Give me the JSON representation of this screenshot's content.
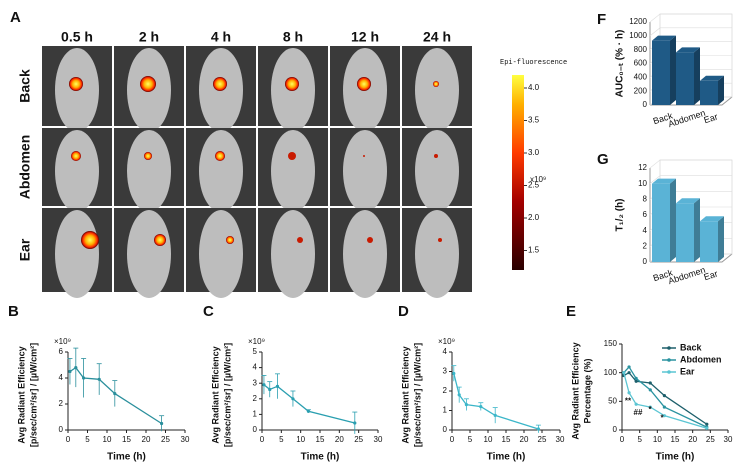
{
  "panel_a": {
    "label": "A",
    "times": [
      "0.5 h",
      "2 h",
      "4 h",
      "8 h",
      "12 h",
      "24 h"
    ],
    "rows": [
      "Back",
      "Abdomen",
      "Ear"
    ],
    "colorbar": {
      "title": "Epi-fluorescence",
      "multiplier": "x10⁹",
      "lim": [
        1.2,
        4.2
      ],
      "ticks": [
        {
          "value": 4,
          "label": "4.0"
        },
        {
          "value": 3.5,
          "label": "3.5"
        },
        {
          "value": 3,
          "label": "3.0"
        },
        {
          "value": 2.5,
          "label": "2.5"
        },
        {
          "value": 2,
          "label": "2.0"
        },
        {
          "value": 1.5,
          "label": "1.5"
        }
      ]
    }
  },
  "chart_data": [
    {
      "type": "line",
      "panel": "B",
      "multiplier": "×10⁹",
      "ylabel": [
        "Avg Radiant Efficiency",
        "[p/sec/cm²/sr] / [µW/cm²]"
      ],
      "xlabel": "Time (h)",
      "x": [
        0.5,
        2,
        4,
        8,
        12,
        24
      ],
      "values": [
        4.5,
        4.8,
        4.0,
        3.9,
        2.8,
        0.5
      ],
      "errors": [
        1.0,
        1.5,
        1.5,
        1.2,
        1.0,
        0.6
      ],
      "color": "#2a8f9c",
      "xlim": [
        0,
        30
      ],
      "xticks": [
        0,
        5,
        10,
        15,
        20,
        25,
        30
      ],
      "ylim": [
        0,
        6
      ],
      "yticks": [
        0,
        2,
        4,
        6
      ]
    },
    {
      "type": "line",
      "panel": "C",
      "multiplier": "×10⁹",
      "ylabel": [
        "Avg Radiant Efficiency",
        "[p/sec/cm²/sr] / [µW/cm²]"
      ],
      "xlabel": "Time (h)",
      "x": [
        0.5,
        2,
        4,
        8,
        12,
        24
      ],
      "values": [
        2.9,
        2.6,
        2.8,
        2.0,
        1.2,
        0.45
      ],
      "errors": [
        0.6,
        0.5,
        0.8,
        0.5,
        0.1,
        0.7
      ],
      "color": "#2a9fb0",
      "xlim": [
        0,
        30
      ],
      "xticks": [
        0,
        5,
        10,
        15,
        20,
        25,
        30
      ],
      "ylim": [
        0,
        5
      ],
      "yticks": [
        0,
        1,
        2,
        3,
        4,
        5
      ]
    },
    {
      "type": "line",
      "panel": "D",
      "multiplier": "×10⁹",
      "ylabel": [
        "Avg Radiant Efficiency",
        "[p/sec/cm²/sr] / [µW/cm²]"
      ],
      "xlabel": "Time (h)",
      "x": [
        0.5,
        2,
        4,
        8,
        12,
        24
      ],
      "values": [
        2.9,
        1.8,
        1.3,
        1.2,
        0.75,
        0.05
      ],
      "errors": [
        0.4,
        0.4,
        0.3,
        0.2,
        0.4,
        0.2
      ],
      "color": "#3bb6c9",
      "xlim": [
        0,
        30
      ],
      "xticks": [
        0,
        5,
        10,
        15,
        20,
        25,
        30
      ],
      "ylim": [
        0,
        4
      ],
      "yticks": [
        0,
        1,
        2,
        3,
        4
      ]
    },
    {
      "type": "line",
      "panel": "E",
      "ylabel": [
        "Avg Radiant Efficiency",
        "Percentage (%)"
      ],
      "xlabel": "Time (h)",
      "x": [
        0.5,
        2,
        4,
        8,
        12,
        24
      ],
      "series": [
        {
          "name": "Back",
          "color": "#1d5f6b",
          "values": [
            95,
            100,
            85,
            82,
            60,
            10
          ]
        },
        {
          "name": "Abdomen",
          "color": "#2a93a0",
          "values": [
            100,
            110,
            90,
            70,
            40,
            5
          ]
        },
        {
          "name": "Ear",
          "color": "#5bc5d3",
          "values": [
            100,
            65,
            45,
            40,
            25,
            3
          ]
        }
      ],
      "annotations": [
        "**",
        "##",
        "*",
        "*"
      ],
      "xlim": [
        0,
        30
      ],
      "xticks": [
        0,
        5,
        10,
        15,
        20,
        25,
        30
      ],
      "ylim": [
        0,
        150
      ],
      "yticks": [
        0,
        50,
        100,
        150
      ]
    },
    {
      "type": "bar3d",
      "panel": "F",
      "ylabel": "AUC₀₋ₜ (% · h)",
      "categories": [
        "Back",
        "Abdomen",
        "Ear"
      ],
      "values": [
        930,
        760,
        350
      ],
      "color": "#1f5a86",
      "ylim": [
        0,
        1200
      ],
      "yticks": [
        0,
        200,
        400,
        600,
        800,
        1000,
        1200
      ]
    },
    {
      "type": "bar3d",
      "panel": "G",
      "ylabel": "T₁/₂ (h)",
      "categories": [
        "Back",
        "Abdomen",
        "Ear"
      ],
      "values": [
        10,
        7.5,
        5.2
      ],
      "color": "#5ab3d6",
      "ylim": [
        0,
        12
      ],
      "yticks": [
        0,
        2,
        4,
        6,
        8,
        10,
        12
      ]
    }
  ]
}
